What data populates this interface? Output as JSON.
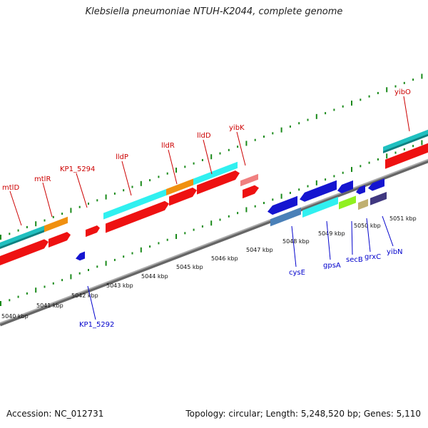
{
  "title": "Klebsiella pneumoniae NTUH-K2044, complete genome",
  "footer": {
    "accession": "Accession: NC_012731",
    "topology": "Topology: circular; Length: 5,248,520 bp; Genes: 5,110"
  },
  "kbp_labels": [
    "5040 kbp",
    "5041 kbp",
    "5042 kbp",
    "5043 kbp",
    "5044 kbp",
    "5045 kbp",
    "5046 kbp",
    "5047 kbp",
    "5048 kbp",
    "5049 kbp",
    "5050 kbp",
    "5051 kbp"
  ],
  "forward_gene_labels": [
    "mtlD",
    "mtlR",
    "KP1_5294",
    "lldP",
    "lldR",
    "lldD",
    "yibK",
    "yibO"
  ],
  "reverse_gene_labels": [
    "KP1_5292",
    "cysE",
    "gpsA",
    "secB",
    "grxC",
    "yibN"
  ],
  "colors": {
    "forward_label": "#cc0000",
    "reverse_label": "#0000cc",
    "forward_arrow": "#ee1111",
    "reverse_arrow": "#1515d0",
    "tick": "#1a8a1a",
    "backbone": "#8a8a8a"
  }
}
